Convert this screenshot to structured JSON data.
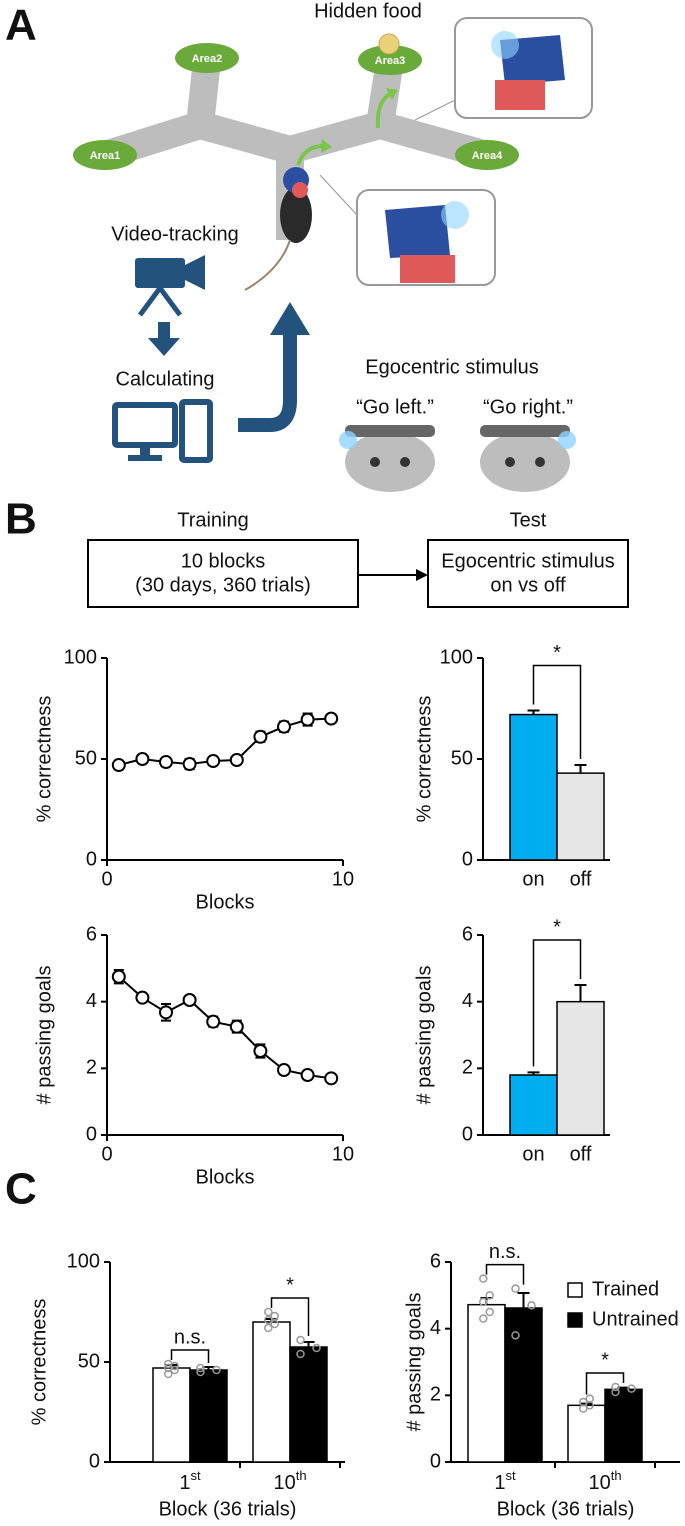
{
  "panel_labels": [
    "A",
    "B",
    "C"
  ],
  "diagram": {
    "hidden_food": "Hidden food",
    "areas": [
      "Area1",
      "Area2",
      "Area3",
      "Area4"
    ],
    "video_tracking": "Video-tracking",
    "calculating": "Calculating",
    "stimulus_title": "Egocentric stimulus",
    "go_left": "“Go left.”",
    "go_right": "“Go right.”"
  },
  "protocol": {
    "training_title": "Training",
    "training_lines": [
      "10 blocks",
      "(30 days, 360 trials)"
    ],
    "test_title": "Test",
    "test_lines": [
      "Egocentric stimulus",
      "on vs off"
    ]
  },
  "chart_data": [
    {
      "type": "line",
      "ylabel": "% correctness",
      "xlabel": "Blocks",
      "x": [
        0.5,
        1.5,
        2.5,
        3.5,
        4.5,
        5.5,
        6.5,
        7.5,
        8.5,
        9.5
      ],
      "values": [
        47,
        50,
        48.5,
        47.5,
        49,
        49.5,
        61,
        66,
        69.5,
        70
      ],
      "errors": [
        1,
        1,
        1.5,
        2.5,
        1,
        1,
        2.5,
        2.5,
        3,
        1.5
      ],
      "color": "#000000",
      "xlim": [
        0,
        10
      ],
      "xticks": [
        0,
        10
      ],
      "ylim": [
        0,
        100
      ],
      "yticks": [
        0,
        50,
        100
      ]
    },
    {
      "type": "bar",
      "ylabel": "% correctness",
      "categories": [
        "on",
        "off"
      ],
      "values": [
        72,
        43
      ],
      "errors": [
        2,
        4
      ],
      "colors": [
        "#00aeef",
        "#e6e6e6"
      ],
      "ylim": [
        0,
        100
      ],
      "yticks": [
        0,
        50,
        100
      ],
      "annotation": "*"
    },
    {
      "type": "line",
      "ylabel": "# passing goals",
      "xlabel": "Blocks",
      "x": [
        0.5,
        1.5,
        2.5,
        3.5,
        4.5,
        5.5,
        6.5,
        7.5,
        8.5,
        9.5
      ],
      "values": [
        4.75,
        4.12,
        3.68,
        4.05,
        3.4,
        3.25,
        2.52,
        1.95,
        1.8,
        1.7
      ],
      "errors": [
        0.2,
        0.08,
        0.25,
        0.12,
        0.15,
        0.18,
        0.2,
        0.05,
        0.05,
        0.05
      ],
      "color": "#000000",
      "xlim": [
        0,
        10
      ],
      "xticks": [
        0,
        10
      ],
      "ylim": [
        0,
        6
      ],
      "yticks": [
        0,
        2,
        4,
        6
      ]
    },
    {
      "type": "bar",
      "ylabel": "# passing goals",
      "categories": [
        "on",
        "off"
      ],
      "values": [
        1.8,
        4.0
      ],
      "errors": [
        0.08,
        0.5
      ],
      "colors": [
        "#00aeef",
        "#e6e6e6"
      ],
      "ylim": [
        0,
        6
      ],
      "yticks": [
        0,
        2,
        4,
        6
      ],
      "annotation": "*"
    },
    {
      "type": "grouped_bar",
      "ylabel": "% correctness",
      "xlabel": "Block (36 trials)",
      "categories": [
        "1st",
        "10th"
      ],
      "annotations": [
        "n.s.",
        "*"
      ],
      "series": [
        {
          "name": "Trained",
          "color": "#ffffff",
          "values": [
            47,
            70
          ],
          "errors": [
            1.5,
            1.5
          ],
          "points": [
            [
              44,
              46,
              47,
              48,
              49
            ],
            [
              67,
              69,
              71,
              73,
              75
            ]
          ]
        },
        {
          "name": "Untrained",
          "color": "#000000",
          "values": [
            46,
            57.5
          ],
          "errors": [
            1.5,
            2.5
          ],
          "points": [
            [
              45,
              46,
              47
            ],
            [
              54,
              57,
              61
            ]
          ]
        }
      ],
      "ylim": [
        0,
        100
      ],
      "yticks": [
        0,
        50,
        100
      ]
    },
    {
      "type": "grouped_bar",
      "ylabel": "# passing goals",
      "xlabel": "Block (36 trials)",
      "categories": [
        "1st",
        "10th"
      ],
      "annotations": [
        "n.s.",
        "*"
      ],
      "series": [
        {
          "name": "Trained",
          "color": "#ffffff",
          "values": [
            4.72,
            1.7
          ],
          "errors": [
            0.2,
            0.05
          ],
          "points": [
            [
              4.3,
              4.5,
              4.8,
              5.0,
              5.5
            ],
            [
              1.6,
              1.7,
              1.8,
              1.9
            ]
          ]
        },
        {
          "name": "Untrained",
          "color": "#000000",
          "values": [
            4.62,
            2.18
          ],
          "errors": [
            0.45,
            0.05
          ],
          "points": [
            [
              3.8,
              4.7,
              5.2
            ],
            [
              2.1,
              2.2,
              2.25
            ]
          ]
        }
      ],
      "ylim": [
        0,
        6
      ],
      "yticks": [
        0,
        2,
        4,
        6
      ],
      "legend": "upper right"
    }
  ]
}
